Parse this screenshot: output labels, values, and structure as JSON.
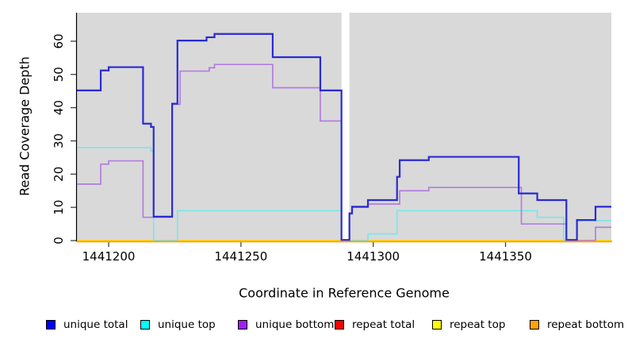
{
  "chart_data": {
    "type": "line",
    "subtype": "step-coverage",
    "title": "",
    "xlabel": "Coordinate in Reference Genome",
    "ylabel": "Read Coverage Depth",
    "xlim": [
      1441188,
      1441390
    ],
    "ylim": [
      0,
      68
    ],
    "grid": false,
    "panel_background": "#d9d9d9",
    "no_data_gap": {
      "x0": 1441288,
      "x1": 1441291
    },
    "xticks": [
      {
        "value": 1441200,
        "label": "1441200"
      },
      {
        "value": 1441250,
        "label": "1441250"
      },
      {
        "value": 1441300,
        "label": "1441300"
      },
      {
        "value": 1441350,
        "label": "1441350"
      }
    ],
    "yticks": [
      {
        "value": 0,
        "label": "0"
      },
      {
        "value": 10,
        "label": "10"
      },
      {
        "value": 20,
        "label": "20"
      },
      {
        "value": 30,
        "label": "30"
      },
      {
        "value": 40,
        "label": "40"
      },
      {
        "value": 50,
        "label": "50"
      },
      {
        "value": 60,
        "label": "60"
      }
    ],
    "legend_position": "bottom",
    "series": [
      {
        "name": "repeat total",
        "line_color": "#ff0000",
        "legend_color": "#ff0000",
        "line_width": 1.5,
        "points": [
          [
            1441188,
            0
          ],
          [
            1441390,
            0
          ]
        ]
      },
      {
        "name": "repeat top",
        "line_color": "#ffff00",
        "legend_color": "#ffff00",
        "line_width": 1.5,
        "points": [
          [
            1441188,
            0
          ],
          [
            1441390,
            0
          ]
        ]
      },
      {
        "name": "unique top",
        "line_color": "#7ce6e8",
        "legend_color": "#00ffff",
        "line_width": 1.7,
        "points": [
          [
            1441188,
            28
          ],
          [
            1441216,
            27
          ],
          [
            1441217,
            0
          ],
          [
            1441226,
            9
          ],
          [
            1441288,
            0
          ],
          [
            1441298,
            2
          ],
          [
            1441309,
            9
          ],
          [
            1441362,
            7
          ],
          [
            1441372,
            0
          ],
          [
            1441377,
            6
          ],
          [
            1441390,
            6
          ]
        ]
      },
      {
        "name": "unique bottom",
        "line_color": "#b37de0",
        "legend_color": "#a020f0",
        "line_width": 1.7,
        "points": [
          [
            1441188,
            17
          ],
          [
            1441197,
            23
          ],
          [
            1441200,
            24
          ],
          [
            1441213,
            7
          ],
          [
            1441224,
            41
          ],
          [
            1441227,
            51
          ],
          [
            1441238,
            52
          ],
          [
            1441240,
            53
          ],
          [
            1441262,
            46
          ],
          [
            1441280,
            36
          ],
          [
            1441288,
            0
          ],
          [
            1441291,
            8
          ],
          [
            1441292,
            10
          ],
          [
            1441298,
            11
          ],
          [
            1441310,
            15
          ],
          [
            1441321,
            16
          ],
          [
            1441356,
            5
          ],
          [
            1441373,
            0
          ],
          [
            1441384,
            4
          ],
          [
            1441390,
            4
          ]
        ]
      },
      {
        "name": "unique total",
        "line_color": "#2a2ad4",
        "legend_color": "#0000ff",
        "line_width": 2.2,
        "points": [
          [
            1441188,
            45
          ],
          [
            1441197,
            51
          ],
          [
            1441200,
            52
          ],
          [
            1441213,
            35
          ],
          [
            1441216,
            34
          ],
          [
            1441217,
            7
          ],
          [
            1441224,
            41
          ],
          [
            1441226,
            60
          ],
          [
            1441237,
            61
          ],
          [
            1441240,
            62
          ],
          [
            1441262,
            55
          ],
          [
            1441280,
            45
          ],
          [
            1441288,
            0
          ],
          [
            1441291,
            8
          ],
          [
            1441292,
            10
          ],
          [
            1441298,
            12
          ],
          [
            1441309,
            19
          ],
          [
            1441310,
            24
          ],
          [
            1441321,
            25
          ],
          [
            1441355,
            14
          ],
          [
            1441362,
            12
          ],
          [
            1441373,
            0
          ],
          [
            1441377,
            6
          ],
          [
            1441384,
            10
          ],
          [
            1441390,
            10
          ]
        ]
      },
      {
        "name": "repeat bottom",
        "line_color": "#ff9e17",
        "legend_color": "#ffa500",
        "line_width": 2,
        "points": [
          [
            1441188,
            0
          ],
          [
            1441390,
            0
          ]
        ]
      }
    ],
    "legend": [
      {
        "label": "unique total",
        "color": "#0000ff"
      },
      {
        "label": "unique top",
        "color": "#00ffff"
      },
      {
        "label": "unique bottom",
        "color": "#a020f0"
      },
      {
        "label": "repeat total",
        "color": "#ff0000"
      },
      {
        "label": "repeat top",
        "color": "#ffff00"
      },
      {
        "label": "repeat bottom",
        "color": "#ffa500"
      }
    ]
  }
}
